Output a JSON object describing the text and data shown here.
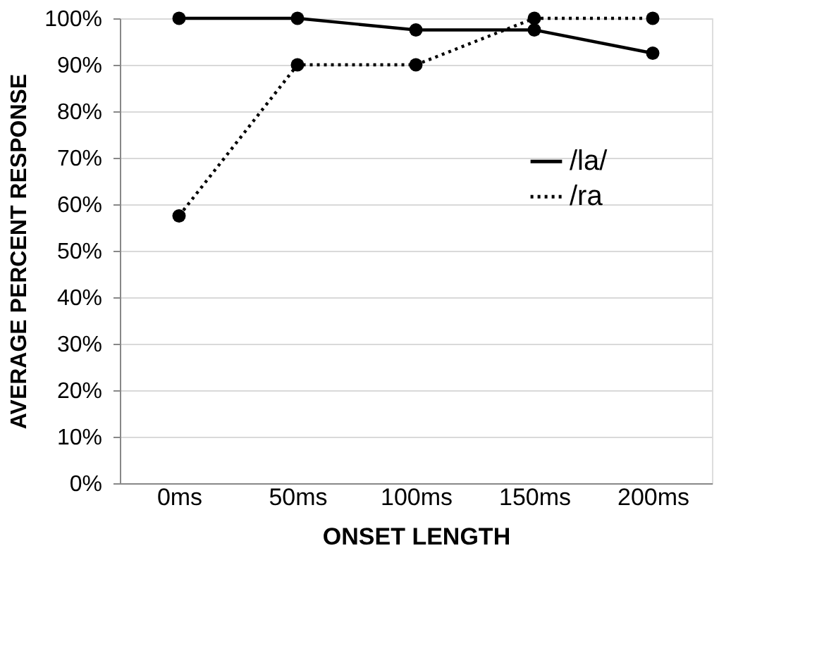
{
  "chart_data": {
    "type": "line",
    "xlabel": "ONSET LENGTH",
    "ylabel": "AVERAGE PERCENT RESPONSE",
    "categories": [
      "0ms",
      "50ms",
      "100ms",
      "150ms",
      "200ms"
    ],
    "series": [
      {
        "name": "/la/",
        "color": "#000000",
        "values": [
          100,
          100,
          97.5,
          97.5,
          92.5
        ],
        "line_style": "solid"
      },
      {
        "name": "/ra",
        "color": "#000000",
        "values": [
          57.5,
          90,
          90,
          100,
          100
        ],
        "line_style": "dotted"
      }
    ],
    "ylim": [
      0,
      100
    ],
    "yticks": [
      {
        "value": 0,
        "label": "0%"
      },
      {
        "value": 10,
        "label": "10%"
      },
      {
        "value": 20,
        "label": "20%"
      },
      {
        "value": 30,
        "label": "30%"
      },
      {
        "value": 40,
        "label": "40%"
      },
      {
        "value": 50,
        "label": "50%"
      },
      {
        "value": 60,
        "label": "60%"
      },
      {
        "value": 70,
        "label": "70%"
      },
      {
        "value": 80,
        "label": "80%"
      },
      {
        "value": 90,
        "label": "90%"
      },
      {
        "value": 100,
        "label": "100%"
      }
    ],
    "grid": "y",
    "legend": "right",
    "marker": "circle"
  }
}
